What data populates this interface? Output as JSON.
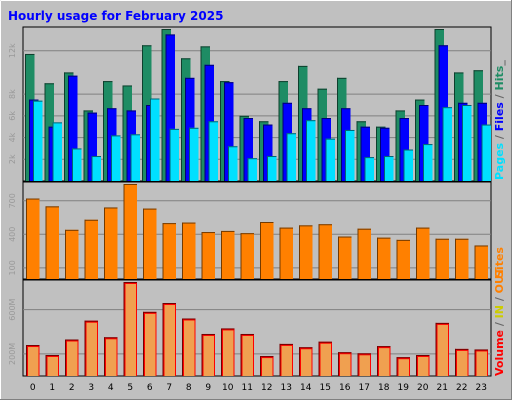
{
  "chart_data": {
    "type": "bar",
    "title": "Hourly usage for February 2025",
    "categories": [
      "0",
      "1",
      "2",
      "3",
      "4",
      "5",
      "6",
      "7",
      "8",
      "9",
      "10",
      "11",
      "12",
      "13",
      "14",
      "15",
      "16",
      "17",
      "18",
      "19",
      "20",
      "21",
      "22",
      "23"
    ],
    "panels": [
      {
        "name": "hits-files-pages",
        "ylim": [
          0,
          14000
        ],
        "yticks": [
          {
            "value": 2000,
            "label": "2k"
          },
          {
            "value": 4000,
            "label": "4k"
          },
          {
            "value": 6000,
            "label": "6k"
          },
          {
            "value": 8000,
            "label": "8k"
          },
          {
            "value": 12000,
            "label": "12k"
          }
        ],
        "series": [
          {
            "name": "Hits",
            "color": "#1e8c64",
            "values": [
              11700,
              9000,
              10000,
              6500,
              9200,
              8800,
              12500,
              14000,
              11300,
              12400,
              9200,
              6000,
              5500,
              9200,
              10600,
              8500,
              9500,
              5500,
              5000,
              6500,
              7500,
              14000,
              10000,
              10200
            ]
          },
          {
            "name": "Files",
            "color": "#0000ff",
            "values": [
              7500,
              5000,
              9700,
              6300,
              6700,
              6500,
              7000,
              13500,
              9500,
              10700,
              9100,
              5800,
              5200,
              7200,
              6700,
              5800,
              6700,
              5000,
              4900,
              5800,
              7000,
              12500,
              7200,
              7200
            ]
          },
          {
            "name": "Pages",
            "color": "#00e0ff",
            "values": [
              7400,
              5400,
              3000,
              2300,
              4200,
              4300,
              7600,
              4800,
              4900,
              5500,
              3200,
              2100,
              2300,
              4400,
              5600,
              3900,
              4700,
              2200,
              2300,
              2900,
              3400,
              6800,
              7000,
              5200
            ]
          }
        ]
      },
      {
        "name": "sites",
        "ylim": [
          0,
          850
        ],
        "yticks": [
          {
            "value": 100,
            "label": "100"
          },
          {
            "value": 400,
            "label": "400"
          },
          {
            "value": 700,
            "label": "700"
          }
        ],
        "series": [
          {
            "name": "Sites",
            "color": "#ff8000",
            "values": [
              720,
              650,
              440,
              530,
              640,
              850,
              630,
              500,
              505,
              420,
              430,
              410,
              510,
              460,
              480,
              490,
              380,
              450,
              370,
              350,
              460,
              360,
              360,
              300
            ]
          }
        ]
      },
      {
        "name": "volume",
        "ylim": [
          0,
          850
        ],
        "yticks": [
          {
            "value": 200,
            "label": "200M"
          },
          {
            "value": 600,
            "label": "600M"
          }
        ],
        "series": [
          {
            "name": "Volume",
            "color": "#ff0000",
            "values": [
              280,
              190,
              330,
              500,
              350,
              850,
              580,
              660,
              520,
              380,
              430,
              380,
              180,
              290,
              260,
              310,
              215,
              205,
              270,
              170,
              190,
              480,
              245,
              240
            ]
          }
        ]
      }
    ],
    "side_labels": [
      {
        "text": "Pages",
        "color": "#00e0ff"
      },
      {
        "text": " / ",
        "color": "#666666"
      },
      {
        "text": "Files",
        "color": "#0000ff"
      },
      {
        "text": " / ",
        "color": "#666666"
      },
      {
        "text": "Hits",
        "color": "#1e8c64"
      },
      {
        "text": "_",
        "color": "#666666"
      }
    ],
    "sites_label": {
      "text": "Sites",
      "color": "#ff8000"
    },
    "volume_labels": [
      {
        "text": "Volume",
        "color": "#ff0000"
      },
      {
        "text": " / ",
        "color": "#666666"
      },
      {
        "text": "IN",
        "color": "#cccc00"
      },
      {
        "text": " / ",
        "color": "#666666"
      },
      {
        "text": "OUT",
        "color": "#ff8000"
      }
    ]
  }
}
